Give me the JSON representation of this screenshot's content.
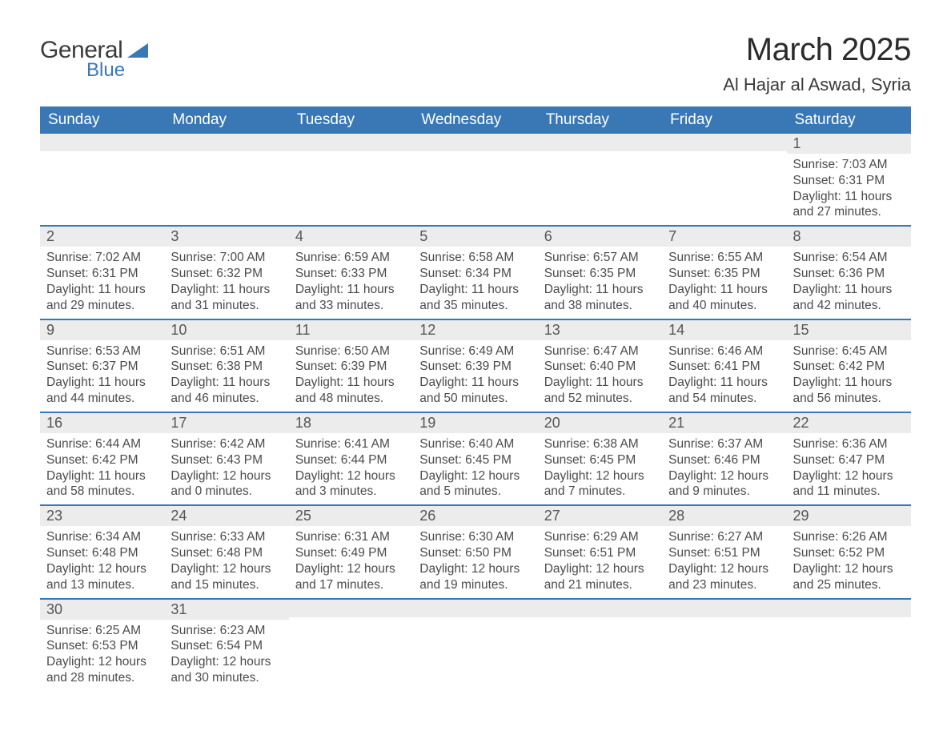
{
  "brand": {
    "word1": "General",
    "word2": "Blue",
    "logo_color": "#3a77b5"
  },
  "title": "March 2025",
  "location": "Al Hajar al Aswad, Syria",
  "day_names": [
    "Sunday",
    "Monday",
    "Tuesday",
    "Wednesday",
    "Thursday",
    "Friday",
    "Saturday"
  ],
  "colors": {
    "header_bg": "#3a77b5",
    "header_text": "#ffffff",
    "daynum_bg": "#ececec",
    "row_divider": "#3a77b5",
    "body_text": "#4b4b4b"
  },
  "weeks": [
    [
      {
        "n": "",
        "sunrise": "",
        "sunset": "",
        "daylight": ""
      },
      {
        "n": "",
        "sunrise": "",
        "sunset": "",
        "daylight": ""
      },
      {
        "n": "",
        "sunrise": "",
        "sunset": "",
        "daylight": ""
      },
      {
        "n": "",
        "sunrise": "",
        "sunset": "",
        "daylight": ""
      },
      {
        "n": "",
        "sunrise": "",
        "sunset": "",
        "daylight": ""
      },
      {
        "n": "",
        "sunrise": "",
        "sunset": "",
        "daylight": ""
      },
      {
        "n": "1",
        "sunrise": "Sunrise: 7:03 AM",
        "sunset": "Sunset: 6:31 PM",
        "daylight": "Daylight: 11 hours and 27 minutes."
      }
    ],
    [
      {
        "n": "2",
        "sunrise": "Sunrise: 7:02 AM",
        "sunset": "Sunset: 6:31 PM",
        "daylight": "Daylight: 11 hours and 29 minutes."
      },
      {
        "n": "3",
        "sunrise": "Sunrise: 7:00 AM",
        "sunset": "Sunset: 6:32 PM",
        "daylight": "Daylight: 11 hours and 31 minutes."
      },
      {
        "n": "4",
        "sunrise": "Sunrise: 6:59 AM",
        "sunset": "Sunset: 6:33 PM",
        "daylight": "Daylight: 11 hours and 33 minutes."
      },
      {
        "n": "5",
        "sunrise": "Sunrise: 6:58 AM",
        "sunset": "Sunset: 6:34 PM",
        "daylight": "Daylight: 11 hours and 35 minutes."
      },
      {
        "n": "6",
        "sunrise": "Sunrise: 6:57 AM",
        "sunset": "Sunset: 6:35 PM",
        "daylight": "Daylight: 11 hours and 38 minutes."
      },
      {
        "n": "7",
        "sunrise": "Sunrise: 6:55 AM",
        "sunset": "Sunset: 6:35 PM",
        "daylight": "Daylight: 11 hours and 40 minutes."
      },
      {
        "n": "8",
        "sunrise": "Sunrise: 6:54 AM",
        "sunset": "Sunset: 6:36 PM",
        "daylight": "Daylight: 11 hours and 42 minutes."
      }
    ],
    [
      {
        "n": "9",
        "sunrise": "Sunrise: 6:53 AM",
        "sunset": "Sunset: 6:37 PM",
        "daylight": "Daylight: 11 hours and 44 minutes."
      },
      {
        "n": "10",
        "sunrise": "Sunrise: 6:51 AM",
        "sunset": "Sunset: 6:38 PM",
        "daylight": "Daylight: 11 hours and 46 minutes."
      },
      {
        "n": "11",
        "sunrise": "Sunrise: 6:50 AM",
        "sunset": "Sunset: 6:39 PM",
        "daylight": "Daylight: 11 hours and 48 minutes."
      },
      {
        "n": "12",
        "sunrise": "Sunrise: 6:49 AM",
        "sunset": "Sunset: 6:39 PM",
        "daylight": "Daylight: 11 hours and 50 minutes."
      },
      {
        "n": "13",
        "sunrise": "Sunrise: 6:47 AM",
        "sunset": "Sunset: 6:40 PM",
        "daylight": "Daylight: 11 hours and 52 minutes."
      },
      {
        "n": "14",
        "sunrise": "Sunrise: 6:46 AM",
        "sunset": "Sunset: 6:41 PM",
        "daylight": "Daylight: 11 hours and 54 minutes."
      },
      {
        "n": "15",
        "sunrise": "Sunrise: 6:45 AM",
        "sunset": "Sunset: 6:42 PM",
        "daylight": "Daylight: 11 hours and 56 minutes."
      }
    ],
    [
      {
        "n": "16",
        "sunrise": "Sunrise: 6:44 AM",
        "sunset": "Sunset: 6:42 PM",
        "daylight": "Daylight: 11 hours and 58 minutes."
      },
      {
        "n": "17",
        "sunrise": "Sunrise: 6:42 AM",
        "sunset": "Sunset: 6:43 PM",
        "daylight": "Daylight: 12 hours and 0 minutes."
      },
      {
        "n": "18",
        "sunrise": "Sunrise: 6:41 AM",
        "sunset": "Sunset: 6:44 PM",
        "daylight": "Daylight: 12 hours and 3 minutes."
      },
      {
        "n": "19",
        "sunrise": "Sunrise: 6:40 AM",
        "sunset": "Sunset: 6:45 PM",
        "daylight": "Daylight: 12 hours and 5 minutes."
      },
      {
        "n": "20",
        "sunrise": "Sunrise: 6:38 AM",
        "sunset": "Sunset: 6:45 PM",
        "daylight": "Daylight: 12 hours and 7 minutes."
      },
      {
        "n": "21",
        "sunrise": "Sunrise: 6:37 AM",
        "sunset": "Sunset: 6:46 PM",
        "daylight": "Daylight: 12 hours and 9 minutes."
      },
      {
        "n": "22",
        "sunrise": "Sunrise: 6:36 AM",
        "sunset": "Sunset: 6:47 PM",
        "daylight": "Daylight: 12 hours and 11 minutes."
      }
    ],
    [
      {
        "n": "23",
        "sunrise": "Sunrise: 6:34 AM",
        "sunset": "Sunset: 6:48 PM",
        "daylight": "Daylight: 12 hours and 13 minutes."
      },
      {
        "n": "24",
        "sunrise": "Sunrise: 6:33 AM",
        "sunset": "Sunset: 6:48 PM",
        "daylight": "Daylight: 12 hours and 15 minutes."
      },
      {
        "n": "25",
        "sunrise": "Sunrise: 6:31 AM",
        "sunset": "Sunset: 6:49 PM",
        "daylight": "Daylight: 12 hours and 17 minutes."
      },
      {
        "n": "26",
        "sunrise": "Sunrise: 6:30 AM",
        "sunset": "Sunset: 6:50 PM",
        "daylight": "Daylight: 12 hours and 19 minutes."
      },
      {
        "n": "27",
        "sunrise": "Sunrise: 6:29 AM",
        "sunset": "Sunset: 6:51 PM",
        "daylight": "Daylight: 12 hours and 21 minutes."
      },
      {
        "n": "28",
        "sunrise": "Sunrise: 6:27 AM",
        "sunset": "Sunset: 6:51 PM",
        "daylight": "Daylight: 12 hours and 23 minutes."
      },
      {
        "n": "29",
        "sunrise": "Sunrise: 6:26 AM",
        "sunset": "Sunset: 6:52 PM",
        "daylight": "Daylight: 12 hours and 25 minutes."
      }
    ],
    [
      {
        "n": "30",
        "sunrise": "Sunrise: 6:25 AM",
        "sunset": "Sunset: 6:53 PM",
        "daylight": "Daylight: 12 hours and 28 minutes."
      },
      {
        "n": "31",
        "sunrise": "Sunrise: 6:23 AM",
        "sunset": "Sunset: 6:54 PM",
        "daylight": "Daylight: 12 hours and 30 minutes."
      },
      {
        "n": "",
        "sunrise": "",
        "sunset": "",
        "daylight": ""
      },
      {
        "n": "",
        "sunrise": "",
        "sunset": "",
        "daylight": ""
      },
      {
        "n": "",
        "sunrise": "",
        "sunset": "",
        "daylight": ""
      },
      {
        "n": "",
        "sunrise": "",
        "sunset": "",
        "daylight": ""
      },
      {
        "n": "",
        "sunrise": "",
        "sunset": "",
        "daylight": ""
      }
    ]
  ]
}
